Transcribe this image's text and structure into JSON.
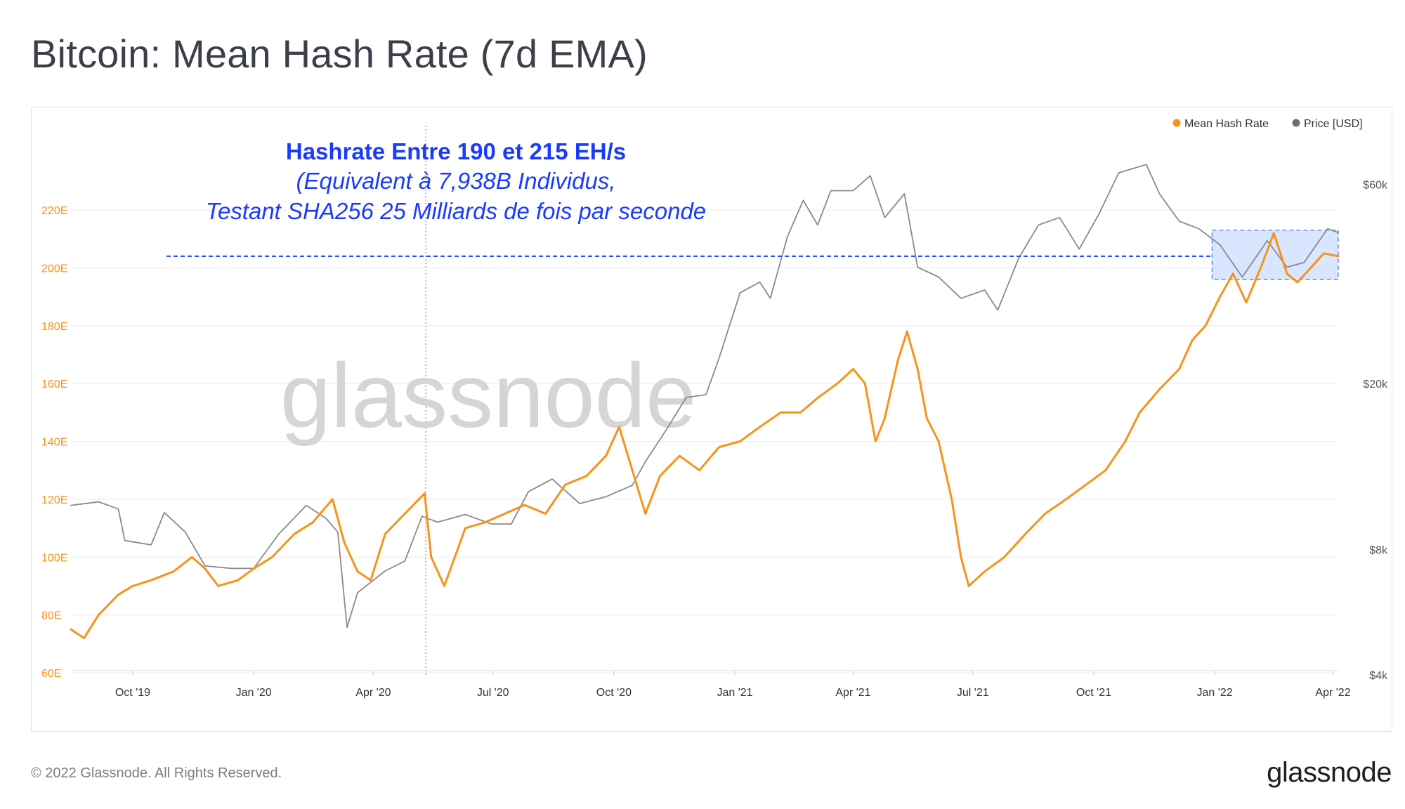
{
  "title": "Bitcoin: Mean Hash Rate (7d EMA)",
  "footer": {
    "copyright": "© 2022 Glassnode. All Rights Reserved.",
    "logo": "glassnode"
  },
  "watermark": "glassnode",
  "colors": {
    "hash": "#f7931a",
    "price": "#8a8a8a",
    "annotation": "#1a3bff",
    "grid": "#ececec",
    "box_fill": "#cfe0ff"
  },
  "legend": [
    {
      "name": "Mean Hash Rate",
      "color": "#f7931a"
    },
    {
      "name": "Price [USD]",
      "color": "#6f6f6f"
    }
  ],
  "annotation": {
    "line1": "Hashrate Entre 190 et  215 EH/s",
    "line2": "(Equivalent à 7,938B Individus,",
    "line3": "Testant SHA256 25 Milliards de fois par seconde",
    "reference_hashrate": 204,
    "box_range": {
      "x_start": "2021-12-30",
      "x_end": "2022-04-05",
      "y_low": 196,
      "y_high": 213
    },
    "vertical_marker": "2020-05-11"
  },
  "chart_data": {
    "type": "line",
    "x_range": [
      "2019-08-15",
      "2022-04-05"
    ],
    "x_ticks": [
      {
        "date": "2019-10-01",
        "label": "Oct '19"
      },
      {
        "date": "2020-01-01",
        "label": "Jan '20"
      },
      {
        "date": "2020-04-01",
        "label": "Apr '20"
      },
      {
        "date": "2020-07-01",
        "label": "Jul '20"
      },
      {
        "date": "2020-10-01",
        "label": "Oct '20"
      },
      {
        "date": "2021-01-01",
        "label": "Jan '21"
      },
      {
        "date": "2021-04-01",
        "label": "Apr '21"
      },
      {
        "date": "2021-07-01",
        "label": "Jul '21"
      },
      {
        "date": "2021-10-01",
        "label": "Oct '21"
      },
      {
        "date": "2022-01-01",
        "label": "Jan '22"
      },
      {
        "date": "2022-04-01",
        "label": "Apr '22"
      }
    ],
    "y_left": {
      "unit": "EH/s",
      "range": [
        60,
        220
      ],
      "ticks": [
        {
          "value": 60,
          "label": "60E"
        },
        {
          "value": 80,
          "label": "80E"
        },
        {
          "value": 100,
          "label": "100E"
        },
        {
          "value": 120,
          "label": "120E"
        },
        {
          "value": 140,
          "label": "140E"
        },
        {
          "value": 160,
          "label": "160E"
        },
        {
          "value": 180,
          "label": "180E"
        },
        {
          "value": 200,
          "label": "200E"
        },
        {
          "value": 220,
          "label": "220E"
        }
      ]
    },
    "y_right": {
      "scale": "log",
      "range": [
        4000,
        70000
      ],
      "ticks": [
        {
          "value": 4000,
          "label": "$4k"
        },
        {
          "value": 8000,
          "label": "$8k"
        },
        {
          "value": 20000,
          "label": "$20k"
        },
        {
          "value": 60000,
          "label": "$60k"
        }
      ]
    },
    "series": [
      {
        "name": "Mean Hash Rate",
        "axis": "left",
        "points": [
          [
            "2019-08-15",
            75
          ],
          [
            "2019-08-25",
            72
          ],
          [
            "2019-09-05",
            80
          ],
          [
            "2019-09-20",
            87
          ],
          [
            "2019-10-01",
            90
          ],
          [
            "2019-10-15",
            92
          ],
          [
            "2019-11-01",
            95
          ],
          [
            "2019-11-15",
            100
          ],
          [
            "2019-11-25",
            96
          ],
          [
            "2019-12-05",
            90
          ],
          [
            "2019-12-20",
            92
          ],
          [
            "2020-01-01",
            96
          ],
          [
            "2020-01-15",
            100
          ],
          [
            "2020-02-01",
            108
          ],
          [
            "2020-02-15",
            112
          ],
          [
            "2020-03-01",
            120
          ],
          [
            "2020-03-10",
            105
          ],
          [
            "2020-03-20",
            95
          ],
          [
            "2020-03-30",
            92
          ],
          [
            "2020-04-10",
            108
          ],
          [
            "2020-04-25",
            115
          ],
          [
            "2020-05-10",
            122
          ],
          [
            "2020-05-15",
            100
          ],
          [
            "2020-05-25",
            90
          ],
          [
            "2020-06-10",
            110
          ],
          [
            "2020-06-25",
            112
          ],
          [
            "2020-07-10",
            115
          ],
          [
            "2020-07-25",
            118
          ],
          [
            "2020-08-10",
            115
          ],
          [
            "2020-08-25",
            125
          ],
          [
            "2020-09-10",
            128
          ],
          [
            "2020-09-25",
            135
          ],
          [
            "2020-10-05",
            145
          ],
          [
            "2020-10-15",
            130
          ],
          [
            "2020-10-25",
            115
          ],
          [
            "2020-11-05",
            128
          ],
          [
            "2020-11-20",
            135
          ],
          [
            "2020-12-05",
            130
          ],
          [
            "2020-12-20",
            138
          ],
          [
            "2021-01-05",
            140
          ],
          [
            "2021-01-20",
            145
          ],
          [
            "2021-02-05",
            150
          ],
          [
            "2021-02-20",
            150
          ],
          [
            "2021-03-05",
            155
          ],
          [
            "2021-03-20",
            160
          ],
          [
            "2021-04-01",
            165
          ],
          [
            "2021-04-10",
            160
          ],
          [
            "2021-04-18",
            140
          ],
          [
            "2021-04-25",
            148
          ],
          [
            "2021-05-05",
            168
          ],
          [
            "2021-05-12",
            178
          ],
          [
            "2021-05-20",
            165
          ],
          [
            "2021-05-27",
            148
          ],
          [
            "2021-06-05",
            140
          ],
          [
            "2021-06-15",
            120
          ],
          [
            "2021-06-22",
            100
          ],
          [
            "2021-06-28",
            90
          ],
          [
            "2021-07-10",
            95
          ],
          [
            "2021-07-25",
            100
          ],
          [
            "2021-08-10",
            108
          ],
          [
            "2021-08-25",
            115
          ],
          [
            "2021-09-10",
            120
          ],
          [
            "2021-09-25",
            125
          ],
          [
            "2021-10-10",
            130
          ],
          [
            "2021-10-25",
            140
          ],
          [
            "2021-11-05",
            150
          ],
          [
            "2021-11-20",
            158
          ],
          [
            "2021-12-05",
            165
          ],
          [
            "2021-12-15",
            175
          ],
          [
            "2021-12-25",
            180
          ],
          [
            "2022-01-05",
            190
          ],
          [
            "2022-01-15",
            198
          ],
          [
            "2022-01-25",
            188
          ],
          [
            "2022-02-05",
            200
          ],
          [
            "2022-02-15",
            212
          ],
          [
            "2022-02-25",
            198
          ],
          [
            "2022-03-05",
            195
          ],
          [
            "2022-03-15",
            200
          ],
          [
            "2022-03-25",
            205
          ],
          [
            "2022-04-05",
            204
          ]
        ]
      },
      {
        "name": "Price [USD]",
        "axis": "right",
        "points": [
          [
            "2019-08-15",
            10200
          ],
          [
            "2019-09-05",
            10400
          ],
          [
            "2019-09-20",
            10000
          ],
          [
            "2019-09-25",
            8400
          ],
          [
            "2019-10-15",
            8200
          ],
          [
            "2019-10-25",
            9800
          ],
          [
            "2019-11-10",
            8800
          ],
          [
            "2019-11-25",
            7300
          ],
          [
            "2019-12-15",
            7200
          ],
          [
            "2020-01-01",
            7200
          ],
          [
            "2020-01-20",
            8700
          ],
          [
            "2020-02-10",
            10200
          ],
          [
            "2020-02-25",
            9500
          ],
          [
            "2020-03-05",
            8800
          ],
          [
            "2020-03-12",
            5200
          ],
          [
            "2020-03-20",
            6300
          ],
          [
            "2020-04-10",
            7100
          ],
          [
            "2020-04-25",
            7500
          ],
          [
            "2020-05-08",
            9600
          ],
          [
            "2020-05-20",
            9300
          ],
          [
            "2020-06-10",
            9700
          ],
          [
            "2020-06-30",
            9200
          ],
          [
            "2020-07-15",
            9200
          ],
          [
            "2020-07-28",
            11000
          ],
          [
            "2020-08-15",
            11800
          ],
          [
            "2020-09-05",
            10300
          ],
          [
            "2020-09-25",
            10700
          ],
          [
            "2020-10-15",
            11400
          ],
          [
            "2020-10-25",
            13000
          ],
          [
            "2020-11-10",
            15500
          ],
          [
            "2020-11-25",
            18500
          ],
          [
            "2020-12-10",
            18800
          ],
          [
            "2020-12-20",
            23000
          ],
          [
            "2021-01-05",
            33000
          ],
          [
            "2021-01-20",
            35000
          ],
          [
            "2021-01-28",
            32000
          ],
          [
            "2021-02-10",
            45000
          ],
          [
            "2021-02-22",
            55000
          ],
          [
            "2021-03-05",
            48000
          ],
          [
            "2021-03-15",
            58000
          ],
          [
            "2021-04-01",
            58000
          ],
          [
            "2021-04-14",
            63000
          ],
          [
            "2021-04-25",
            50000
          ],
          [
            "2021-05-10",
            57000
          ],
          [
            "2021-05-20",
            38000
          ],
          [
            "2021-06-05",
            36000
          ],
          [
            "2021-06-22",
            32000
          ],
          [
            "2021-07-10",
            33500
          ],
          [
            "2021-07-20",
            30000
          ],
          [
            "2021-08-05",
            40000
          ],
          [
            "2021-08-20",
            48000
          ],
          [
            "2021-09-05",
            50000
          ],
          [
            "2021-09-20",
            42000
          ],
          [
            "2021-10-05",
            51000
          ],
          [
            "2021-10-20",
            64000
          ],
          [
            "2021-11-10",
            67000
          ],
          [
            "2021-11-20",
            57000
          ],
          [
            "2021-12-05",
            49000
          ],
          [
            "2021-12-20",
            47000
          ],
          [
            "2022-01-05",
            43000
          ],
          [
            "2022-01-22",
            36000
          ],
          [
            "2022-02-10",
            44000
          ],
          [
            "2022-02-25",
            38000
          ],
          [
            "2022-03-10",
            39000
          ],
          [
            "2022-03-28",
            47000
          ],
          [
            "2022-04-05",
            46000
          ]
        ]
      }
    ]
  }
}
